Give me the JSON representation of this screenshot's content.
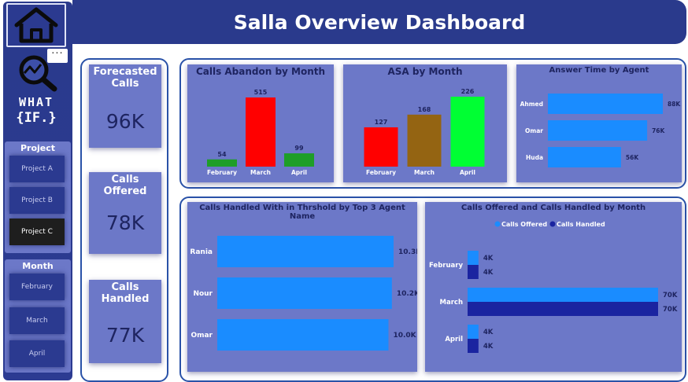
{
  "header": {
    "title": "Salla Overview Dashboard"
  },
  "sidebar": {
    "more_label": "···",
    "whatif": {
      "line1": "WHAT",
      "line2": "{IF.}"
    },
    "project_slicer": {
      "title": "Project",
      "items": [
        {
          "label": "Project A",
          "selected": false
        },
        {
          "label": "Project B",
          "selected": false
        },
        {
          "label": "Project C",
          "selected": true
        }
      ]
    },
    "month_slicer": {
      "title": "Month",
      "items": [
        {
          "label": "February"
        },
        {
          "label": "March"
        },
        {
          "label": "April"
        }
      ]
    }
  },
  "kpis": [
    {
      "title": "Forecasted Calls",
      "value": "96K"
    },
    {
      "title": "Calls Offered",
      "value": "78K"
    },
    {
      "title": "Calls Handled",
      "value": "77K"
    }
  ],
  "chart_data": [
    {
      "type": "bar",
      "title": "Calls Abandon by Month",
      "categories": [
        "February",
        "March",
        "April"
      ],
      "values": [
        54,
        515,
        99
      ],
      "labels": [
        "54",
        "515",
        "99"
      ],
      "colors": [
        "#1e9e28",
        "#ff0000",
        "#1e9e28"
      ]
    },
    {
      "type": "bar",
      "title": "ASA by Month",
      "categories": [
        "February",
        "March",
        "April"
      ],
      "values": [
        127,
        168,
        226
      ],
      "labels": [
        "127",
        "168",
        "226"
      ],
      "colors": [
        "#ff0000",
        "#946412",
        "#00ff33"
      ]
    },
    {
      "type": "bar",
      "orientation": "horizontal",
      "title": "Answer Time by Agent",
      "categories": [
        "Ahmed",
        "Omar",
        "Huda"
      ],
      "values": [
        88,
        76,
        56
      ],
      "labels": [
        "88K",
        "76K",
        "56K"
      ],
      "colors": [
        "#1a8cff"
      ]
    },
    {
      "type": "bar",
      "orientation": "horizontal",
      "title": "Calls Handled With in Thrshold by Top 3 Agent Name",
      "categories": [
        "Rania",
        "Nour",
        "Omar"
      ],
      "values": [
        10.3,
        10.2,
        10.0
      ],
      "labels": [
        "10.3K",
        "10.2K",
        "10.0K"
      ],
      "colors": [
        "#1a8cff"
      ]
    },
    {
      "type": "bar",
      "orientation": "horizontal",
      "title": "Calls Offered and Calls Handled by Month",
      "categories": [
        "February",
        "March",
        "April"
      ],
      "legend": "top",
      "series": [
        {
          "name": "Calls Offered",
          "values": [
            4,
            70,
            4
          ],
          "labels": [
            "4K",
            "70K",
            "4K"
          ],
          "color": "#1a8cff"
        },
        {
          "name": "Calls Handled",
          "values": [
            4,
            70,
            4
          ],
          "labels": [
            "4K",
            "70K",
            "4K"
          ],
          "color": "#1a24a0"
        }
      ]
    }
  ]
}
